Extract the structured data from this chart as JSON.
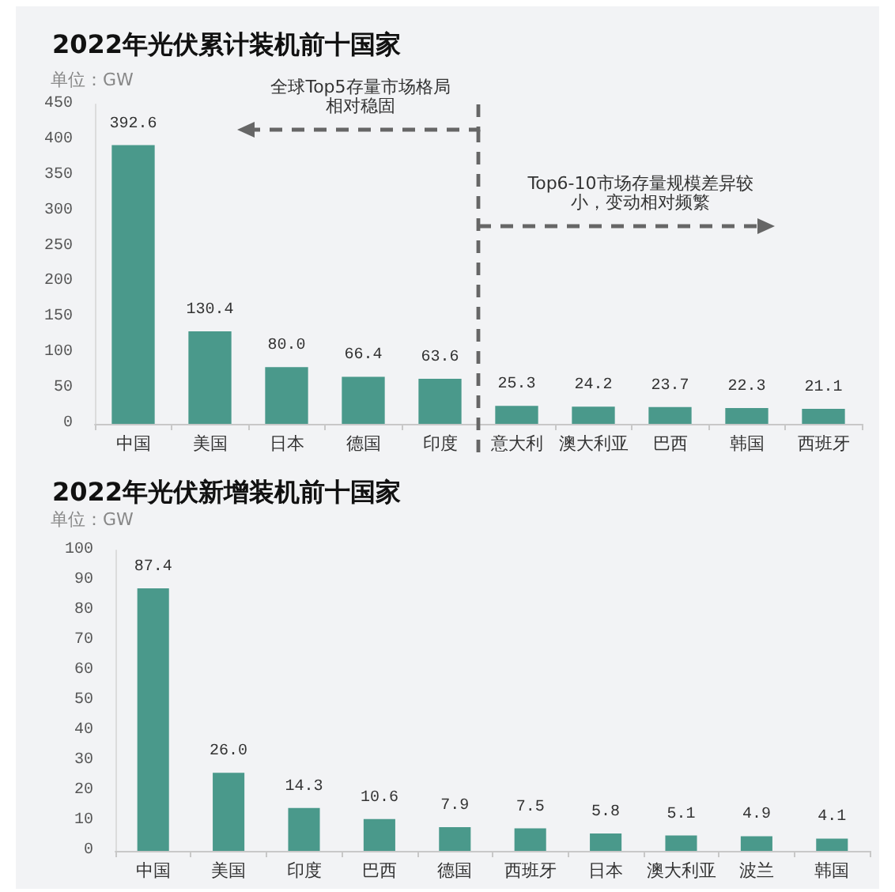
{
  "chart_data": [
    {
      "type": "bar",
      "title": "2022年光伏累计装机前十国家",
      "ylabel": "单位：GW",
      "categories": [
        "中国",
        "美国",
        "日本",
        "德国",
        "印度",
        "意大利",
        "澳大利亚",
        "巴西",
        "韩国",
        "西班牙"
      ],
      "values": [
        392.6,
        130.4,
        80.0,
        66.4,
        63.6,
        25.3,
        24.2,
        23.7,
        22.3,
        21.1
      ],
      "value_labels": [
        "392.6",
        "130.4",
        "80.0",
        "66.4",
        "63.6",
        "25.3",
        "24.2",
        "23.7",
        "22.3",
        "21.1"
      ],
      "color": "#4a998b",
      "ylim": [
        0,
        450
      ],
      "yticks": [
        0,
        50,
        100,
        150,
        200,
        250,
        300,
        350,
        400,
        450
      ],
      "annotations": [
        "全球Top5存量市场格局相对稳固",
        "Top6-10市场存量规模差异较小，变动相对频繁"
      ]
    },
    {
      "type": "bar",
      "title": "2022年光伏新增装机前十国家",
      "ylabel": "单位：GW",
      "categories": [
        "中国",
        "美国",
        "印度",
        "巴西",
        "德国",
        "西班牙",
        "日本",
        "澳大利亚",
        "波兰",
        "韩国"
      ],
      "values": [
        87.4,
        26.0,
        14.3,
        10.6,
        7.9,
        7.5,
        5.8,
        5.1,
        4.9,
        4.1
      ],
      "value_labels": [
        "87.4",
        "26.0",
        "14.3",
        "10.6",
        "7.9",
        "7.5",
        "5.8",
        "5.1",
        "4.9",
        "4.1"
      ],
      "color": "#4a998b",
      "ylim": [
        0,
        100
      ],
      "yticks": [
        0,
        10,
        20,
        30,
        40,
        50,
        60,
        70,
        80,
        90,
        100
      ]
    }
  ]
}
